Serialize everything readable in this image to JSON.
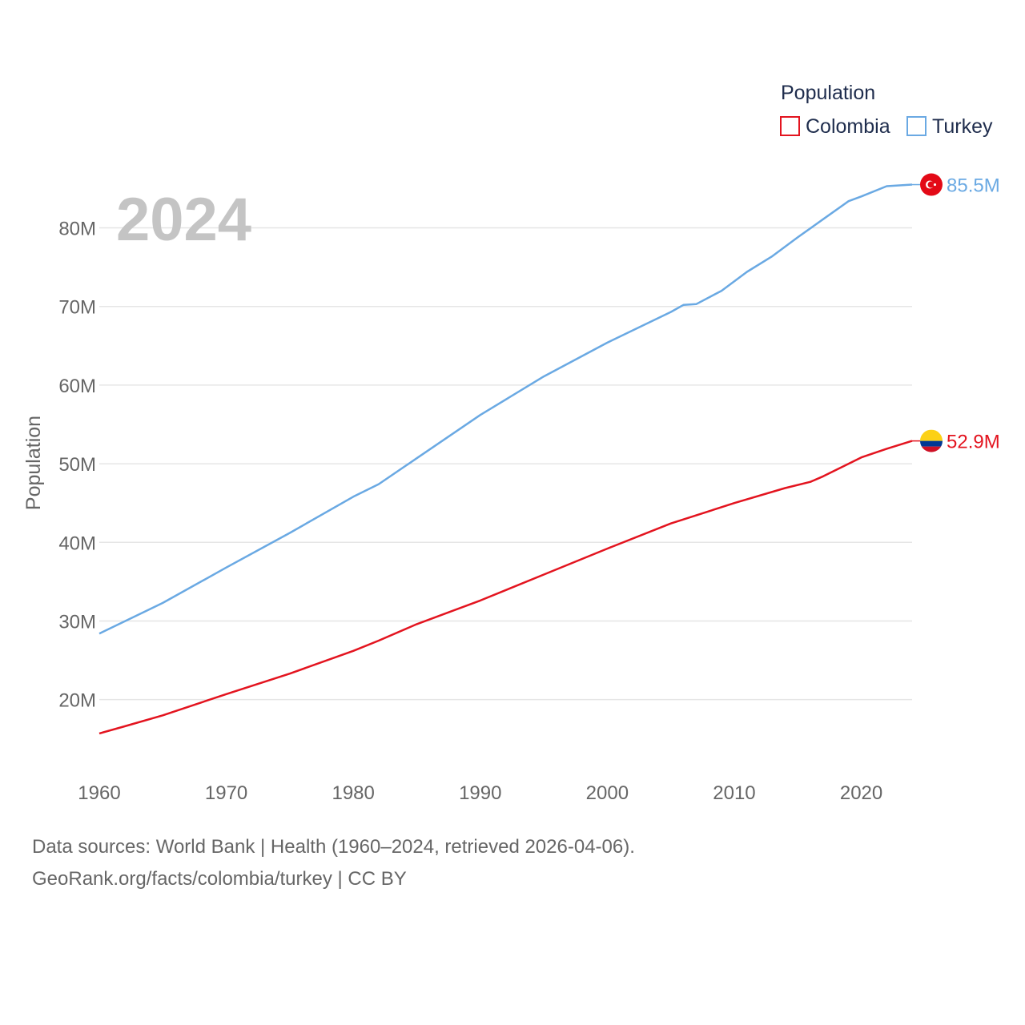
{
  "chart_data": {
    "type": "line",
    "title": "",
    "current_year": "2024",
    "xlabel": "",
    "ylabel": "Population",
    "legend_title": "Population",
    "legend_position": "top-right",
    "xlim": [
      1960,
      2024
    ],
    "ylim": [
      11000000,
      88000000
    ],
    "x_ticks": [
      1960,
      1970,
      1980,
      1990,
      2000,
      2010,
      2020
    ],
    "y_ticks": [
      {
        "value": 20000000,
        "label": "20M"
      },
      {
        "value": 30000000,
        "label": "30M"
      },
      {
        "value": 40000000,
        "label": "40M"
      },
      {
        "value": 50000000,
        "label": "50M"
      },
      {
        "value": 60000000,
        "label": "60M"
      },
      {
        "value": 70000000,
        "label": "70M"
      },
      {
        "value": 80000000,
        "label": "80M"
      }
    ],
    "grid": true,
    "series": [
      {
        "name": "Colombia",
        "color": "#e3141f",
        "end_label": "52.9M",
        "flag": "colombia-flag",
        "points": [
          [
            1960,
            15700000
          ],
          [
            1962,
            16600000
          ],
          [
            1965,
            18000000
          ],
          [
            1970,
            20700000
          ],
          [
            1975,
            23300000
          ],
          [
            1980,
            26200000
          ],
          [
            1982,
            27500000
          ],
          [
            1985,
            29600000
          ],
          [
            1990,
            32600000
          ],
          [
            1995,
            35900000
          ],
          [
            2000,
            39200000
          ],
          [
            2005,
            42400000
          ],
          [
            2010,
            45000000
          ],
          [
            2014,
            46900000
          ],
          [
            2016,
            47700000
          ],
          [
            2017,
            48400000
          ],
          [
            2019,
            50000000
          ],
          [
            2020,
            50800000
          ],
          [
            2022,
            51900000
          ],
          [
            2024,
            52900000
          ]
        ]
      },
      {
        "name": "Turkey",
        "color": "#6aa9e3",
        "end_label": "85.5M",
        "flag": "turkey-flag",
        "points": [
          [
            1960,
            28400000
          ],
          [
            1965,
            32300000
          ],
          [
            1970,
            36800000
          ],
          [
            1975,
            41200000
          ],
          [
            1980,
            45800000
          ],
          [
            1982,
            47400000
          ],
          [
            1985,
            50700000
          ],
          [
            1990,
            56200000
          ],
          [
            1995,
            61100000
          ],
          [
            2000,
            65400000
          ],
          [
            2005,
            69300000
          ],
          [
            2006,
            70200000
          ],
          [
            2007,
            70300000
          ],
          [
            2009,
            72000000
          ],
          [
            2011,
            74400000
          ],
          [
            2013,
            76400000
          ],
          [
            2015,
            78800000
          ],
          [
            2017,
            81100000
          ],
          [
            2019,
            83400000
          ],
          [
            2020,
            84000000
          ],
          [
            2022,
            85300000
          ],
          [
            2024,
            85500000
          ]
        ]
      }
    ]
  },
  "footer": {
    "line1": "Data sources: World Bank | Health (1960–2024, retrieved 2026-04-06).",
    "line2": "GeoRank.org/facts/colombia/turkey | CC BY"
  }
}
